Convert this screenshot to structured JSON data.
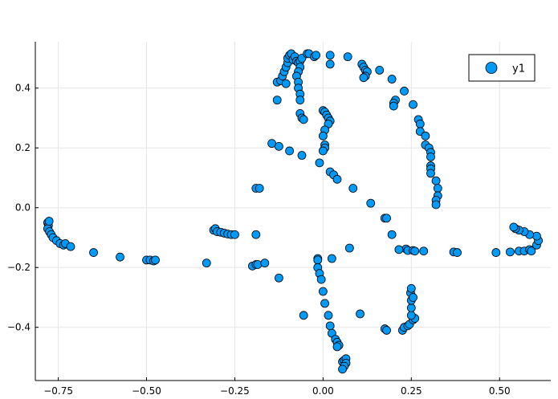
{
  "chart_data": {
    "type": "scatter",
    "xlim": [
      -0.815,
      0.645
    ],
    "ylim": [
      -0.578,
      0.555
    ],
    "xticks": [
      -0.75,
      -0.5,
      -0.25,
      0.0,
      0.25,
      0.5
    ],
    "xtick_labels": [
      "−0.75",
      "−0.50",
      "−0.25",
      "0.00",
      "0.25",
      "0.50"
    ],
    "yticks": [
      -0.4,
      -0.2,
      0.0,
      0.2,
      0.4
    ],
    "ytick_labels": [
      "−0.4",
      "−0.2",
      "0.0",
      "0.2",
      "0.4"
    ],
    "grid": true,
    "legend": {
      "position": "top-right",
      "entries": [
        "y1"
      ]
    },
    "series": [
      {
        "name": "y1",
        "color": "#009af9",
        "points": [
          [
            -0.78,
            -0.05
          ],
          [
            -0.778,
            -0.06
          ],
          [
            -0.78,
            -0.07
          ],
          [
            -0.776,
            -0.045
          ],
          [
            -0.775,
            -0.08
          ],
          [
            -0.77,
            -0.09
          ],
          [
            -0.765,
            -0.1
          ],
          [
            -0.755,
            -0.11
          ],
          [
            -0.745,
            -0.12
          ],
          [
            -0.735,
            -0.125
          ],
          [
            -0.73,
            -0.12
          ],
          [
            -0.715,
            -0.13
          ],
          [
            -0.65,
            -0.15
          ],
          [
            -0.575,
            -0.165
          ],
          [
            -0.5,
            -0.175
          ],
          [
            -0.49,
            -0.175
          ],
          [
            -0.48,
            -0.178
          ],
          [
            -0.475,
            -0.175
          ],
          [
            -0.33,
            -0.185
          ],
          [
            -0.31,
            -0.075
          ],
          [
            -0.305,
            -0.07
          ],
          [
            -0.3,
            -0.08
          ],
          [
            -0.29,
            -0.082
          ],
          [
            -0.28,
            -0.085
          ],
          [
            -0.27,
            -0.088
          ],
          [
            -0.26,
            -0.09
          ],
          [
            -0.25,
            -0.09
          ],
          [
            -0.19,
            -0.09
          ],
          [
            -0.2,
            -0.195
          ],
          [
            -0.19,
            -0.19
          ],
          [
            -0.185,
            -0.19
          ],
          [
            -0.165,
            -0.185
          ],
          [
            -0.125,
            -0.235
          ],
          [
            -0.19,
            0.065
          ],
          [
            -0.18,
            0.065
          ],
          [
            -0.145,
            0.215
          ],
          [
            -0.125,
            0.205
          ],
          [
            -0.095,
            0.19
          ],
          [
            -0.06,
            0.175
          ],
          [
            -0.01,
            0.15
          ],
          [
            0.02,
            0.12
          ],
          [
            0.03,
            0.11
          ],
          [
            0.04,
            0.095
          ],
          [
            0.085,
            0.065
          ],
          [
            0.135,
            0.015
          ],
          [
            0.175,
            -0.035
          ],
          [
            0.18,
            -0.035
          ],
          [
            0.195,
            -0.09
          ],
          [
            0.235,
            -0.138
          ],
          [
            0.215,
            -0.14
          ],
          [
            0.24,
            -0.143
          ],
          [
            0.255,
            -0.143
          ],
          [
            0.26,
            -0.145
          ],
          [
            0.285,
            -0.145
          ],
          [
            0.37,
            -0.148
          ],
          [
            0.38,
            -0.15
          ],
          [
            0.49,
            -0.15
          ],
          [
            0.53,
            -0.148
          ],
          [
            0.555,
            -0.145
          ],
          [
            0.57,
            -0.145
          ],
          [
            0.585,
            -0.14
          ],
          [
            0.59,
            -0.145
          ],
          [
            0.605,
            -0.125
          ],
          [
            0.61,
            -0.11
          ],
          [
            0.605,
            -0.095
          ],
          [
            0.585,
            -0.09
          ],
          [
            0.57,
            -0.08
          ],
          [
            0.555,
            -0.075
          ],
          [
            0.545,
            -0.07
          ],
          [
            0.54,
            -0.065
          ],
          [
            -0.13,
            0.42
          ],
          [
            -0.12,
            0.425
          ],
          [
            -0.115,
            0.44
          ],
          [
            -0.11,
            0.455
          ],
          [
            -0.105,
            0.47
          ],
          [
            -0.1,
            0.485
          ],
          [
            -0.1,
            0.5
          ],
          [
            -0.095,
            0.51
          ],
          [
            -0.09,
            0.515
          ],
          [
            -0.085,
            0.495
          ],
          [
            -0.08,
            0.505
          ],
          [
            -0.075,
            0.49
          ],
          [
            -0.07,
            0.485
          ],
          [
            -0.065,
            0.49
          ],
          [
            -0.06,
            0.5
          ],
          [
            -0.105,
            0.415
          ],
          [
            -0.13,
            0.36
          ],
          [
            -0.045,
            0.515
          ],
          [
            -0.04,
            0.515
          ],
          [
            -0.025,
            0.505
          ],
          [
            -0.02,
            0.51
          ],
          [
            0.02,
            0.51
          ],
          [
            0.07,
            0.505
          ],
          [
            0.02,
            0.48
          ],
          [
            -0.065,
            0.47
          ],
          [
            -0.07,
            0.455
          ],
          [
            -0.075,
            0.44
          ],
          [
            -0.07,
            0.42
          ],
          [
            -0.07,
            0.4
          ],
          [
            -0.065,
            0.38
          ],
          [
            -0.065,
            0.36
          ],
          [
            -0.065,
            0.315
          ],
          [
            -0.06,
            0.3
          ],
          [
            -0.055,
            0.295
          ],
          [
            0.0,
            0.325
          ],
          [
            0.005,
            0.32
          ],
          [
            0.01,
            0.31
          ],
          [
            0.015,
            0.3
          ],
          [
            0.02,
            0.29
          ],
          [
            0.015,
            0.28
          ],
          [
            0.005,
            0.26
          ],
          [
            0.0,
            0.24
          ],
          [
            0.005,
            0.21
          ],
          [
            0.005,
            0.2
          ],
          [
            0.0,
            0.19
          ],
          [
            0.11,
            0.48
          ],
          [
            0.115,
            0.47
          ],
          [
            0.12,
            0.46
          ],
          [
            0.125,
            0.455
          ],
          [
            0.12,
            0.44
          ],
          [
            0.115,
            0.435
          ],
          [
            0.16,
            0.46
          ],
          [
            0.195,
            0.43
          ],
          [
            0.23,
            0.39
          ],
          [
            0.205,
            0.36
          ],
          [
            0.2,
            0.35
          ],
          [
            0.2,
            0.34
          ],
          [
            0.255,
            0.345
          ],
          [
            0.27,
            0.295
          ],
          [
            0.275,
            0.28
          ],
          [
            0.275,
            0.255
          ],
          [
            0.29,
            0.24
          ],
          [
            0.29,
            0.21
          ],
          [
            0.3,
            0.2
          ],
          [
            0.305,
            0.185
          ],
          [
            0.305,
            0.17
          ],
          [
            0.305,
            0.14
          ],
          [
            0.305,
            0.13
          ],
          [
            0.305,
            0.115
          ],
          [
            0.32,
            0.09
          ],
          [
            0.325,
            0.065
          ],
          [
            0.325,
            0.04
          ],
          [
            0.32,
            0.025
          ],
          [
            0.32,
            0.01
          ],
          [
            -0.015,
            -0.17
          ],
          [
            -0.015,
            -0.175
          ],
          [
            -0.015,
            -0.2
          ],
          [
            -0.01,
            -0.22
          ],
          [
            -0.005,
            -0.24
          ],
          [
            0.0,
            -0.28
          ],
          [
            0.005,
            -0.32
          ],
          [
            0.015,
            -0.36
          ],
          [
            0.02,
            -0.395
          ],
          [
            0.025,
            -0.42
          ],
          [
            0.035,
            -0.44
          ],
          [
            0.04,
            -0.45
          ],
          [
            0.045,
            -0.46
          ],
          [
            0.04,
            -0.465
          ],
          [
            0.055,
            -0.515
          ],
          [
            0.06,
            -0.51
          ],
          [
            0.065,
            -0.505
          ],
          [
            0.065,
            -0.52
          ],
          [
            0.06,
            -0.53
          ],
          [
            0.055,
            -0.54
          ],
          [
            0.025,
            -0.17
          ],
          [
            0.075,
            -0.135
          ],
          [
            -0.055,
            -0.36
          ],
          [
            0.105,
            -0.355
          ],
          [
            0.175,
            -0.405
          ],
          [
            0.18,
            -0.41
          ],
          [
            0.225,
            -0.41
          ],
          [
            0.23,
            -0.4
          ],
          [
            0.24,
            -0.395
          ],
          [
            0.245,
            -0.39
          ],
          [
            0.255,
            -0.375
          ],
          [
            0.26,
            -0.37
          ],
          [
            0.25,
            -0.36
          ],
          [
            0.25,
            -0.335
          ],
          [
            0.25,
            -0.31
          ],
          [
            0.248,
            -0.285
          ],
          [
            0.25,
            -0.27
          ],
          [
            0.255,
            -0.3
          ]
        ]
      }
    ]
  }
}
